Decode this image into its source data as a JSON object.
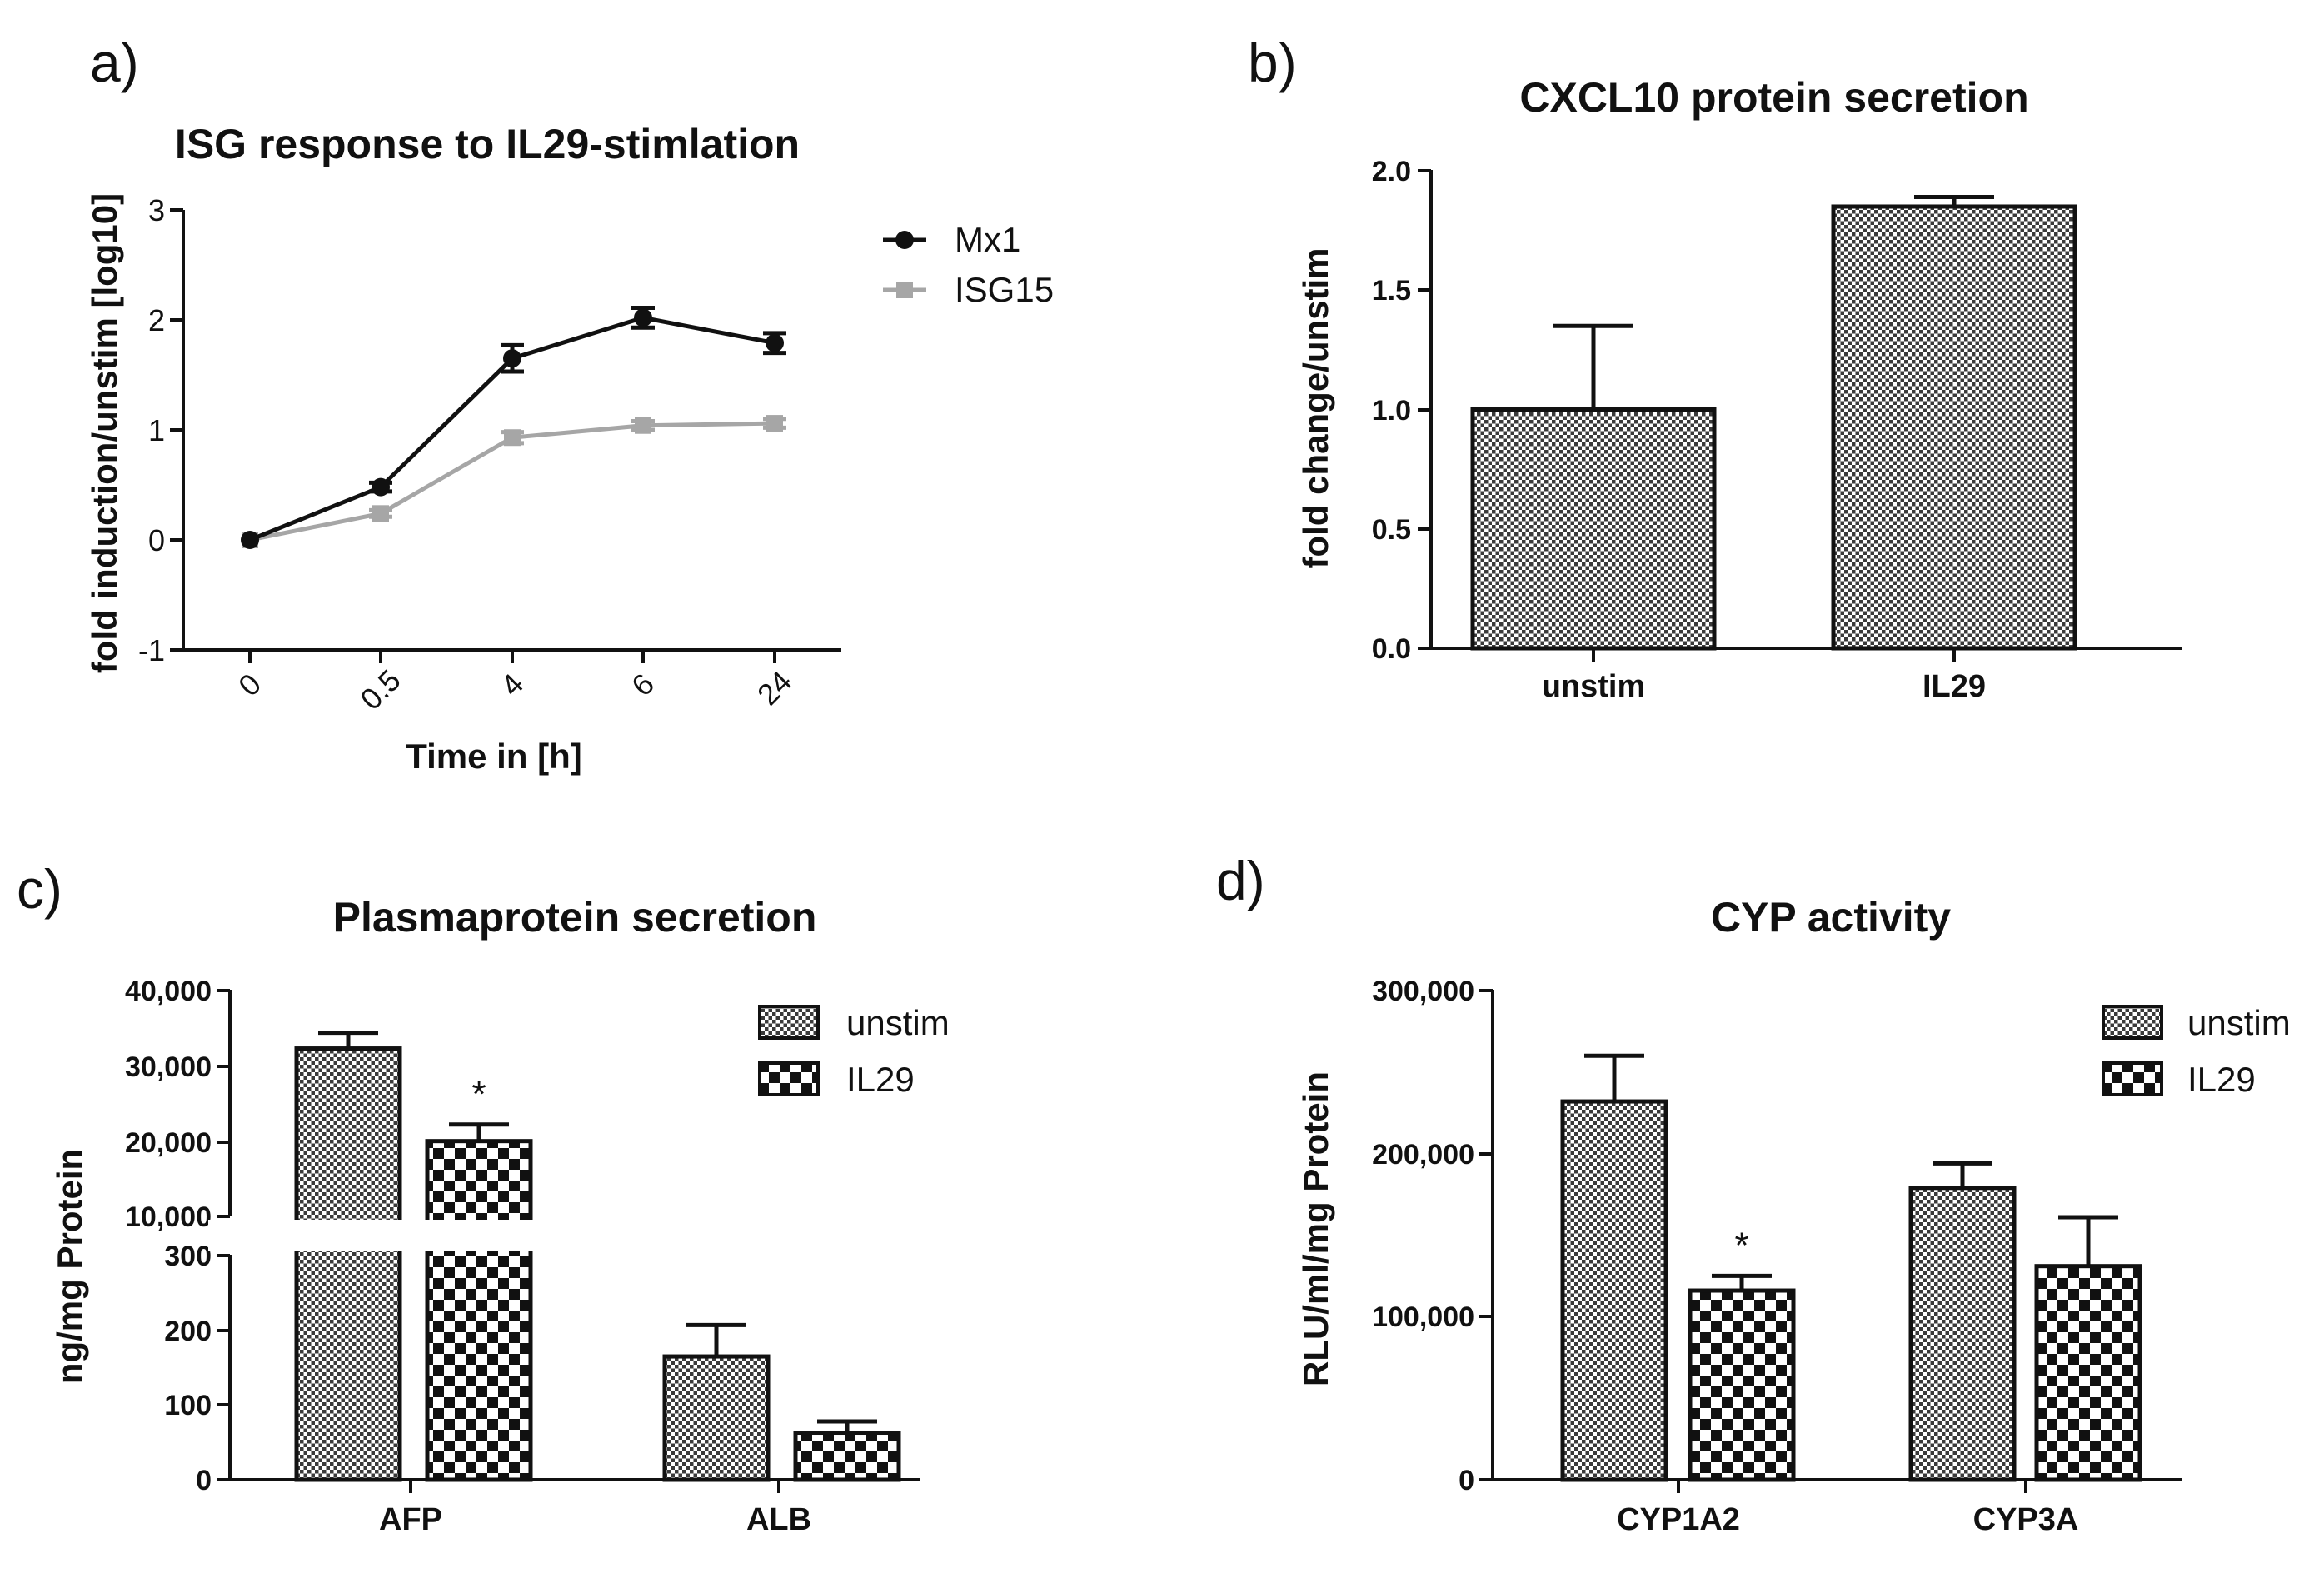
{
  "chart_data": [
    {
      "panel": "a)",
      "type": "line",
      "title": "ISG response to IL29-stimlation",
      "xlabel": "Time in [h]",
      "ylabel": "fold induction/unstim [log10]",
      "categories": [
        "0",
        "0.5",
        "4",
        "6",
        "24"
      ],
      "ylim": [
        -1,
        3
      ],
      "yticks": [
        "3",
        "2",
        "1",
        "0",
        "-1"
      ],
      "legend_position": "top-right",
      "series": [
        {
          "name": "Mx1",
          "values": [
            0,
            0.48,
            1.65,
            2.02,
            1.79
          ],
          "errors": [
            0,
            0.04,
            0.12,
            0.09,
            0.09
          ],
          "color": "#111111",
          "marker": "circle"
        },
        {
          "name": "ISG15",
          "values": [
            0,
            0.24,
            0.93,
            1.04,
            1.06
          ],
          "errors": [
            0,
            0.03,
            0.05,
            0.04,
            0.04
          ],
          "color": "#a6a6a6",
          "marker": "square"
        }
      ]
    },
    {
      "panel": "b)",
      "type": "bar",
      "title": "CXCL10 protein secretion",
      "xlabel": "",
      "ylabel": "fold change/unstim",
      "categories": [
        "unstim",
        "IL29"
      ],
      "values": [
        1.0,
        1.85
      ],
      "errors": [
        0.35,
        0.04
      ],
      "ylim": [
        0,
        2
      ],
      "yticks": [
        "2.0",
        "1.5",
        "1.0",
        "0.5",
        "0.0"
      ]
    },
    {
      "panel": "c)",
      "type": "bar",
      "title": "Plasmaprotein secretion",
      "xlabel": "",
      "ylabel": "ng/mg Protein",
      "categories": [
        "AFP",
        "ALB"
      ],
      "axis_break": {
        "lower": [
          0,
          300
        ],
        "upper": [
          10000,
          40000
        ]
      },
      "yticks": [
        "40,000",
        "30,000",
        "20,000",
        "10,000",
        "300",
        "200",
        "100",
        "0"
      ],
      "legend_position": "top-right",
      "series": [
        {
          "name": "unstim",
          "values": [
            32300,
            165
          ],
          "errors": [
            2100,
            42
          ]
        },
        {
          "name": "IL29",
          "values": [
            20000,
            63
          ],
          "errors": [
            2200,
            15
          ]
        }
      ],
      "annotations": [
        {
          "text": "*",
          "category": "AFP",
          "series": "IL29"
        }
      ]
    },
    {
      "panel": "d)",
      "type": "bar",
      "title": "CYP activity",
      "xlabel": "",
      "ylabel": "RLU/ml/mg Protein",
      "categories": [
        "CYP1A2",
        "CYP3A"
      ],
      "ylim": [
        0,
        300000
      ],
      "yticks": [
        "300,000",
        "200,000",
        "100,000",
        "0"
      ],
      "legend_position": "top-right",
      "series": [
        {
          "name": "unstim",
          "values": [
            232000,
            179000
          ],
          "errors": [
            28000,
            15000
          ]
        },
        {
          "name": "IL29",
          "values": [
            116000,
            131000
          ],
          "errors": [
            9000,
            30000
          ]
        }
      ],
      "annotations": [
        {
          "text": "*",
          "category": "CYP1A2",
          "series": "IL29"
        }
      ]
    }
  ]
}
